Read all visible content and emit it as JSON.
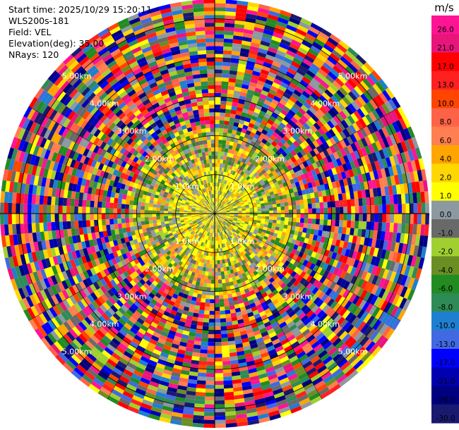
{
  "info": {
    "start_time": "Start time: 2025/10/29 15:20:11",
    "site": "WLS200s-181",
    "field": "Field: VEL",
    "elevation": "Elevation(deg): 35.00",
    "nrays": "NRays: 120"
  },
  "chart_data": {
    "type": "heatmap",
    "projection": "polar-ppi",
    "field": "VEL",
    "rays": 120,
    "elevation_deg": 35.0,
    "range_rings_km": [
      1.0,
      2.0,
      3.0,
      4.0,
      5.0
    ],
    "ring_labels": [
      "1.0km",
      "2.00km",
      "3.00km",
      "4.00km",
      "5.00km"
    ],
    "max_range_km": 5.5,
    "colorbar": {
      "unit": "m/s",
      "ticks": [
        "26.0",
        "21.0",
        "17.0",
        "13.0",
        "10.0",
        "8.0",
        "6.0",
        "4.0",
        "2.0",
        "1.0",
        "0.0",
        "-1.0",
        "-2.0",
        "-4.0",
        "-6.0",
        "-8.0",
        "-10.0",
        "-13.0",
        "-17.0",
        "-21.0",
        "-26.0",
        "-30.0"
      ],
      "colors": [
        "#ff1493",
        "#e8157a",
        "#ff0000",
        "#ff2020",
        "#ff4500",
        "#ff6347",
        "#ff7f50",
        "#ffa500",
        "#ffd700",
        "#ffff00",
        "#8c99a0",
        "#696969",
        "#a0d030",
        "#6b8e23",
        "#228b22",
        "#2e8b57",
        "#1e7fd0",
        "#4169e1",
        "#0000ff",
        "#0000b0",
        "#000080",
        "#191970"
      ]
    }
  }
}
